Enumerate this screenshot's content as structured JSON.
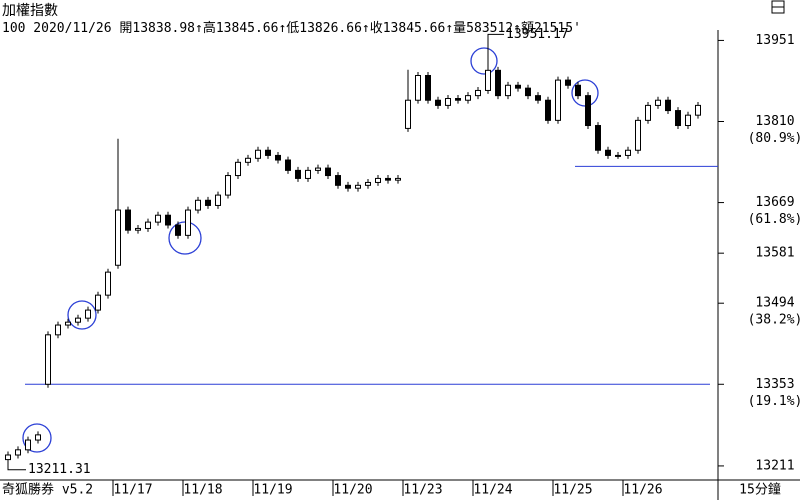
{
  "header": {
    "title": "加權指數",
    "info": "100 2020/11/26 開13838.98↑高13845.66↑低13826.66↑收13845.66↑量583512↑額21515'"
  },
  "footer": {
    "brand": "奇狐勝券 v5.2",
    "period": "15分鐘"
  },
  "chart_data": {
    "type": "candlestick",
    "categories": [
      null,
      null,
      null,
      null,
      null,
      null,
      null,
      null,
      null,
      null,
      null,
      "11/17",
      null,
      null,
      null,
      null,
      null,
      null,
      "11/18",
      null,
      null,
      null,
      null,
      null,
      null,
      "11/19",
      null,
      null,
      null,
      null,
      null,
      null,
      null,
      "11/20",
      null,
      null,
      null,
      null,
      null,
      null,
      "11/23",
      null,
      null,
      null,
      null,
      null,
      null,
      "11/24",
      null,
      null,
      null,
      null,
      null,
      null,
      null,
      "11/25",
      null,
      null,
      null,
      null,
      null,
      null,
      "11/26",
      null,
      null,
      null,
      null,
      null,
      null,
      null
    ],
    "open": [
      13222,
      13230,
      13239,
      13256,
      13353,
      13439,
      13456,
      13461,
      13468,
      13482,
      13508,
      13560,
      13656,
      13621,
      13624,
      13635,
      13647,
      13630,
      13612,
      13656,
      13673,
      13664,
      13682,
      13716,
      13739,
      13746,
      13760,
      13751,
      13743,
      13725,
      13711,
      13725,
      13729,
      13716,
      13699,
      13694,
      13699,
      13704,
      13711,
      13708,
      13798,
      13847,
      13890,
      13847,
      13838,
      13850,
      13847,
      13855,
      13864,
      13899,
      13855,
      13873,
      13868,
      13855,
      13847,
      13812,
      13882,
      13873,
      13855,
      13803,
      13760,
      13751,
      13751,
      13760,
      13812,
      13838,
      13847,
      13829,
      13803,
      13821
    ],
    "high": [
      13236,
      13245,
      13262,
      13271,
      13445,
      13462,
      13467,
      13474,
      13488,
      13514,
      13554,
      13780,
      13662,
      13630,
      13641,
      13653,
      13653,
      13636,
      13662,
      13679,
      13679,
      13688,
      13722,
      13745,
      13752,
      13766,
      13766,
      13757,
      13749,
      13731,
      13731,
      13735,
      13735,
      13722,
      13705,
      13705,
      13710,
      13717,
      13717,
      13717,
      13900,
      13896,
      13896,
      13853,
      13856,
      13856,
      13861,
      13870,
      13951.17,
      13905,
      13879,
      13879,
      13874,
      13861,
      13853,
      13888,
      13888,
      13879,
      13861,
      13809,
      13766,
      13757,
      13766,
      13818,
      13844,
      13853,
      13853,
      13835,
      13827,
      13844
    ],
    "low": [
      13211.31,
      13224,
      13233,
      13250,
      13347,
      13433,
      13450,
      13455,
      13462,
      13476,
      13502,
      13554,
      13615,
      13615,
      13618,
      13629,
      13624,
      13606,
      13606,
      13650,
      13658,
      13658,
      13676,
      13710,
      13733,
      13740,
      13745,
      13737,
      13719,
      13705,
      13705,
      13719,
      13710,
      13693,
      13688,
      13688,
      13693,
      13698,
      13702,
      13702,
      13792,
      13841,
      13841,
      13832,
      13832,
      13841,
      13841,
      13849,
      13858,
      13849,
      13849,
      13862,
      13849,
      13841,
      13806,
      13806,
      13867,
      13849,
      13797,
      13754,
      13745,
      13745,
      13745,
      13754,
      13806,
      13832,
      13823,
      13797,
      13797,
      13815
    ],
    "close": [
      13230,
      13239,
      13256,
      13265,
      13439,
      13456,
      13461,
      13468,
      13482,
      13508,
      13548,
      13656,
      13621,
      13624,
      13635,
      13647,
      13630,
      13612,
      13656,
      13673,
      13664,
      13682,
      13716,
      13739,
      13746,
      13760,
      13751,
      13743,
      13725,
      13711,
      13725,
      13729,
      13716,
      13699,
      13694,
      13699,
      13704,
      13711,
      13708,
      13711,
      13847,
      13890,
      13847,
      13838,
      13850,
      13847,
      13855,
      13864,
      13899,
      13855,
      13873,
      13868,
      13855,
      13847,
      13812,
      13882,
      13873,
      13855,
      13803,
      13760,
      13751,
      13751,
      13760,
      13812,
      13838,
      13847,
      13829,
      13803,
      13821,
      13838
    ],
    "ylim": [
      13190,
      13990
    ],
    "yticks": [
      13951,
      13810,
      13669,
      13581,
      13494,
      13353,
      13211
    ],
    "fib_levels": [
      {
        "value": 13810,
        "label": "(80.9%)"
      },
      {
        "value": 13669,
        "label": "(61.8%)"
      },
      {
        "value": 13494,
        "label": "(38.2%)"
      },
      {
        "value": 13353,
        "label": "(19.1%)"
      }
    ],
    "hlines": [
      13353,
      13732
    ],
    "line_color": "#2b3fd6"
  }
}
